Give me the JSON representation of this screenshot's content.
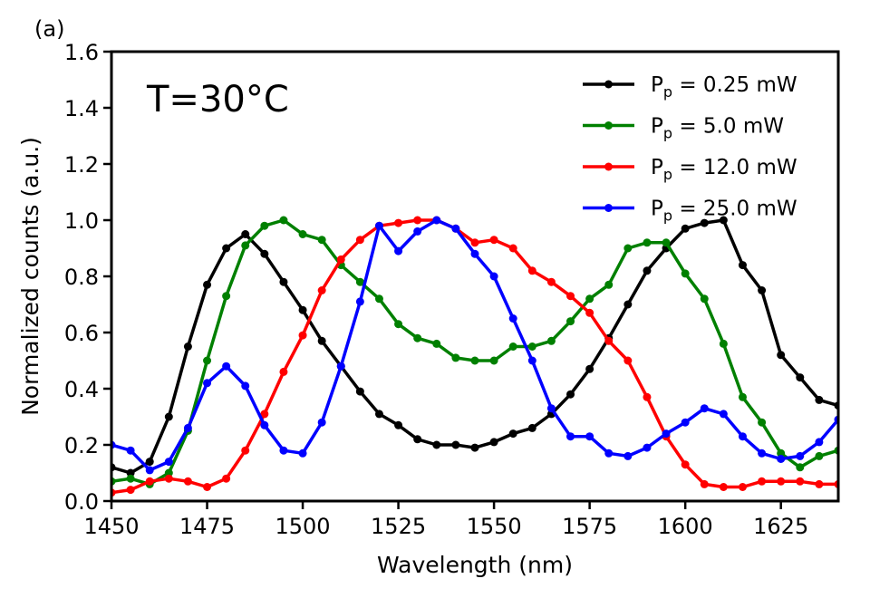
{
  "chart_data": {
    "type": "line",
    "panel_label": "(a)",
    "annotation": "T=30°C",
    "xlabel": "Wavelength (nm)",
    "ylabel": "Normalized counts (a.u.)",
    "xlim": [
      1450,
      1640
    ],
    "ylim": [
      0.0,
      1.6
    ],
    "x_ticks": [
      1450,
      1475,
      1500,
      1525,
      1550,
      1575,
      1600,
      1625
    ],
    "y_ticks": [
      "0.0",
      "0.2",
      "0.4",
      "0.6",
      "0.8",
      "1.0",
      "1.2",
      "1.4",
      "1.6"
    ],
    "x": [
      1450,
      1455,
      1460,
      1465,
      1470,
      1475,
      1480,
      1485,
      1490,
      1495,
      1500,
      1505,
      1510,
      1515,
      1520,
      1525,
      1530,
      1535,
      1540,
      1545,
      1550,
      1555,
      1560,
      1565,
      1570,
      1575,
      1580,
      1585,
      1590,
      1595,
      1600,
      1605,
      1610,
      1615,
      1620,
      1625,
      1630,
      1635,
      1640
    ],
    "legend_position": "top-right",
    "series": [
      {
        "name": "P_p = 0.25 mW",
        "legend_prefix": "P",
        "legend_sub": "p",
        "legend_value": " = 0.25 mW",
        "color": "#000000",
        "values": [
          0.12,
          0.1,
          0.14,
          0.3,
          0.55,
          0.77,
          0.9,
          0.95,
          0.88,
          0.78,
          0.68,
          0.57,
          0.48,
          0.39,
          0.31,
          0.27,
          0.22,
          0.2,
          0.2,
          0.19,
          0.21,
          0.24,
          0.26,
          0.31,
          0.38,
          0.47,
          0.58,
          0.7,
          0.82,
          0.9,
          0.97,
          0.99,
          1.0,
          0.84,
          0.75,
          0.52,
          0.44,
          0.36,
          0.34
        ]
      },
      {
        "name": "P_p = 5.0 mW",
        "legend_prefix": "P",
        "legend_sub": "p",
        "legend_value": " = 5.0 mW",
        "color": "#008000",
        "values": [
          0.07,
          0.08,
          0.06,
          0.1,
          0.25,
          0.5,
          0.73,
          0.91,
          0.98,
          1.0,
          0.95,
          0.93,
          0.84,
          0.78,
          0.72,
          0.63,
          0.58,
          0.56,
          0.51,
          0.5,
          0.5,
          0.55,
          0.55,
          0.57,
          0.64,
          0.72,
          0.77,
          0.9,
          0.92,
          0.92,
          0.81,
          0.72,
          0.56,
          0.37,
          0.28,
          0.17,
          0.12,
          0.16,
          0.18
        ]
      },
      {
        "name": "P_p = 12.0 mW",
        "legend_prefix": "P",
        "legend_sub": "p",
        "legend_value": " = 12.0 mW",
        "color": "#ff0000",
        "values": [
          0.03,
          0.04,
          0.07,
          0.08,
          0.07,
          0.05,
          0.08,
          0.18,
          0.31,
          0.46,
          0.59,
          0.75,
          0.86,
          0.93,
          0.98,
          0.99,
          1.0,
          1.0,
          0.97,
          0.92,
          0.93,
          0.9,
          0.82,
          0.78,
          0.73,
          0.67,
          0.57,
          0.5,
          0.37,
          0.23,
          0.13,
          0.06,
          0.05,
          0.05,
          0.07,
          0.07,
          0.07,
          0.06,
          0.06
        ]
      },
      {
        "name": "P_p = 25.0 mW",
        "legend_prefix": "P",
        "legend_sub": "p",
        "legend_value": " = 25.0 mW",
        "color": "#0000ff",
        "values": [
          0.2,
          0.18,
          0.11,
          0.14,
          0.26,
          0.42,
          0.48,
          0.41,
          0.27,
          0.18,
          0.17,
          0.28,
          0.48,
          0.71,
          0.98,
          0.89,
          0.96,
          1.0,
          0.97,
          0.88,
          0.8,
          0.65,
          0.5,
          0.33,
          0.23,
          0.23,
          0.17,
          0.16,
          0.19,
          0.24,
          0.28,
          0.33,
          0.31,
          0.23,
          0.17,
          0.15,
          0.16,
          0.21,
          0.29
        ]
      }
    ]
  }
}
